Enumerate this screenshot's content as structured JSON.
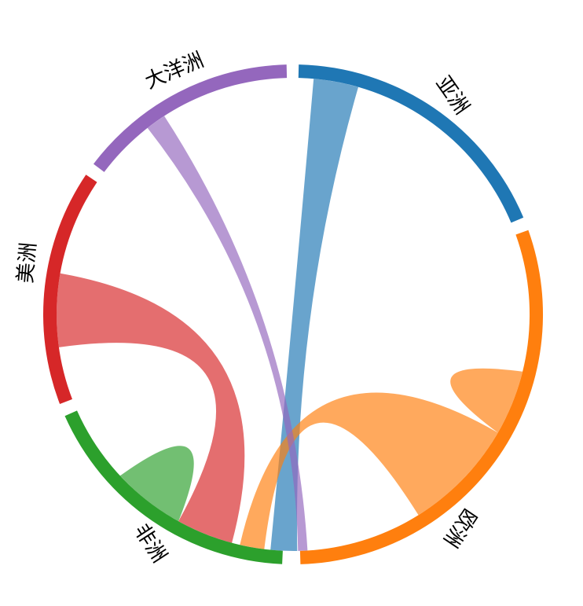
{
  "chart_data": {
    "type": "chord",
    "groups": [
      {
        "name": "亚洲",
        "color": "#1f77b4"
      },
      {
        "name": "欧洲",
        "color": "#ff7f0e"
      },
      {
        "name": "非洲",
        "color": "#2ca02c"
      },
      {
        "name": "美洲",
        "color": "#d62728"
      },
      {
        "name": "大洋洲",
        "color": "#9467bd"
      }
    ],
    "ribbons": [
      {
        "from": "亚洲",
        "to": "非洲",
        "color": "#1f77b4"
      },
      {
        "from": "欧洲",
        "to": "欧洲",
        "color": "#ff7f0e"
      },
      {
        "from": "欧洲",
        "to": "非洲",
        "color": "#ff7f0e"
      },
      {
        "from": "非洲",
        "to": "非洲",
        "color": "#2ca02c"
      },
      {
        "from": "美洲",
        "to": "非洲",
        "color": "#d62728"
      },
      {
        "from": "大洋洲",
        "to": "非洲",
        "color": "#9467bd"
      }
    ]
  }
}
